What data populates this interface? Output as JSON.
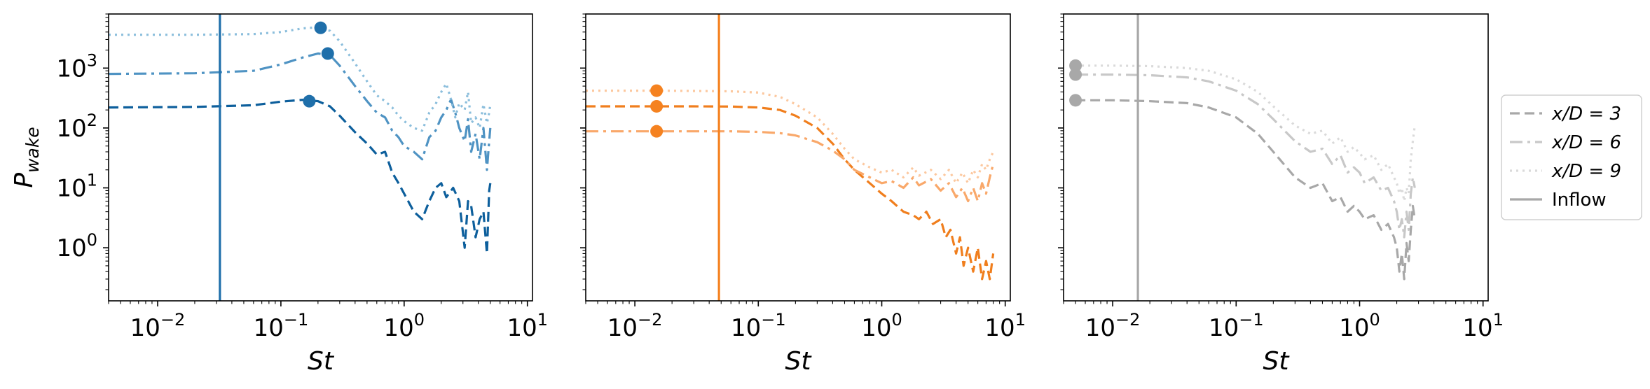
{
  "chart_data": {
    "type": "line",
    "shared_axes": {
      "xscale": "log",
      "yscale": "log",
      "xlim": [
        0.004,
        11
      ],
      "ylim": [
        0.13,
        8000
      ],
      "xticks": [
        {
          "value": 0.01,
          "mant": "10",
          "exp": "−2"
        },
        {
          "value": 0.1,
          "mant": "10",
          "exp": "−1"
        },
        {
          "value": 1,
          "mant": "10",
          "exp": "0"
        },
        {
          "value": 10,
          "mant": "10",
          "exp": "1"
        }
      ],
      "yticks": [
        {
          "value": 1,
          "mant": "10",
          "exp": "0"
        },
        {
          "value": 10,
          "mant": "10",
          "exp": "1"
        },
        {
          "value": 100,
          "mant": "10",
          "exp": "2"
        },
        {
          "value": 1000,
          "mant": "10",
          "exp": "3"
        }
      ],
      "xlabel": "St",
      "ylabel_base": "P",
      "ylabel_sub": "wake",
      "grid": false
    },
    "legend": {
      "placement": "right of figure",
      "entries": [
        {
          "label": "x/D = 3",
          "style": "dashed"
        },
        {
          "label": "x/D = 6",
          "style": "dashdot"
        },
        {
          "label": "x/D = 9",
          "style": "dotted"
        },
        {
          "label": "Inflow",
          "style": "solid"
        }
      ]
    },
    "panels": [
      {
        "color": "#1f6faa",
        "inflow_st": 0.032,
        "series": [
          {
            "style": "dashed",
            "color": "#0d5f9c",
            "x": [
              0.004,
              0.02,
              0.06,
              0.1,
              0.15,
              0.2,
              0.25,
              0.3,
              0.4,
              0.5,
              0.6,
              0.7,
              0.8,
              0.9,
              1.0,
              1.2,
              1.4,
              1.6,
              1.8,
              2.0,
              2.2,
              2.5,
              2.8,
              3.1,
              3.3,
              3.5,
              3.8,
              4.1,
              4.4,
              4.7,
              4.9,
              5.0
            ],
            "y": [
              220,
              225,
              240,
              275,
              295,
              280,
              230,
              160,
              85,
              55,
              36,
              40,
              18,
              12,
              8,
              4,
              3,
              6,
              10,
              12,
              7,
              10,
              6,
              1.0,
              6,
              5,
              1.5,
              3,
              4,
              0.8,
              9,
              12
            ]
          },
          {
            "style": "dashdot",
            "color": "#4f93c3",
            "x": [
              0.004,
              0.02,
              0.06,
              0.1,
              0.15,
              0.2,
              0.25,
              0.3,
              0.4,
              0.5,
              0.6,
              0.7,
              0.8,
              0.9,
              1.0,
              1.2,
              1.4,
              1.6,
              1.8,
              2.0,
              2.2,
              2.4,
              2.6,
              2.8,
              3.1,
              3.3,
              3.5,
              3.8,
              4.1,
              4.4,
              4.7,
              4.9,
              5.0
            ],
            "y": [
              800,
              820,
              900,
              1150,
              1500,
              1750,
              1650,
              1100,
              500,
              280,
              180,
              150,
              90,
              70,
              50,
              40,
              30,
              70,
              90,
              150,
              200,
              300,
              180,
              100,
              60,
              140,
              40,
              80,
              30,
              100,
              20,
              60,
              100
            ]
          },
          {
            "style": "dotted",
            "color": "#8bbedc",
            "x": [
              0.004,
              0.02,
              0.06,
              0.1,
              0.15,
              0.2,
              0.25,
              0.3,
              0.4,
              0.5,
              0.6,
              0.7,
              0.8,
              0.9,
              1.0,
              1.2,
              1.4,
              1.6,
              1.8,
              2.0,
              2.2,
              2.4,
              2.6,
              2.8,
              3.1,
              3.3,
              3.5,
              3.8,
              4.1,
              4.4,
              4.7,
              4.9,
              5.0
            ],
            "y": [
              3600,
              3600,
              3700,
              4000,
              4600,
              4800,
              4200,
              2800,
              1200,
              600,
              350,
              280,
              220,
              160,
              130,
              100,
              90,
              180,
              250,
              400,
              550,
              300,
              150,
              260,
              200,
              400,
              120,
              150,
              100,
              250,
              120,
              180,
              250
            ]
          }
        ],
        "markers": [
          {
            "x": 0.17,
            "y": 280
          },
          {
            "x": 0.24,
            "y": 1750
          },
          {
            "x": 0.21,
            "y": 4700
          }
        ]
      },
      {
        "color": "#f58220",
        "inflow_st": 0.048,
        "series": [
          {
            "style": "dashed",
            "color": "#f07e1d",
            "x": [
              0.004,
              0.015,
              0.03,
              0.06,
              0.1,
              0.15,
              0.2,
              0.3,
              0.4,
              0.5,
              0.6,
              0.8,
              1.0,
              1.2,
              1.5,
              1.8,
              2.0,
              2.3,
              2.6,
              3.0,
              3.3,
              3.6,
              4.0,
              4.3,
              4.6,
              5.0,
              5.5,
              6.0,
              6.5,
              7.0,
              7.5,
              8.0
            ],
            "y": [
              230,
              230,
              230,
              228,
              220,
              200,
              160,
              100,
              55,
              30,
              20,
              12,
              8,
              6,
              4,
              3.5,
              3,
              4,
              2.5,
              3,
              1.5,
              2,
              0.8,
              1.5,
              0.5,
              1.0,
              0.4,
              1.0,
              0.3,
              0.6,
              0.3,
              0.8
            ]
          },
          {
            "style": "dashdot",
            "color": "#f9a86a",
            "x": [
              0.004,
              0.015,
              0.03,
              0.06,
              0.1,
              0.15,
              0.2,
              0.3,
              0.4,
              0.5,
              0.6,
              0.8,
              1.0,
              1.2,
              1.5,
              1.8,
              2.0,
              2.5,
              3.0,
              3.5,
              4.0,
              4.5,
              5.0,
              5.5,
              6.0,
              6.5,
              7.0,
              7.5,
              8.0
            ],
            "y": [
              88,
              88,
              88,
              88,
              86,
              82,
              75,
              58,
              42,
              30,
              20,
              15,
              12,
              13,
              10,
              15,
              11,
              14,
              9,
              12,
              7,
              10,
              6,
              10,
              6,
              12,
              8,
              15,
              25
            ]
          },
          {
            "style": "dotted",
            "color": "#fcc89f",
            "x": [
              0.004,
              0.015,
              0.03,
              0.06,
              0.1,
              0.15,
              0.2,
              0.3,
              0.4,
              0.5,
              0.6,
              0.8,
              1.0,
              1.2,
              1.5,
              1.8,
              2.0,
              2.5,
              3.0,
              3.5,
              4.0,
              4.5,
              5.0,
              5.5,
              6.0,
              6.5,
              7.0,
              7.5,
              8.0
            ],
            "y": [
              420,
              420,
              415,
              410,
              390,
              330,
              250,
              150,
              80,
              45,
              30,
              22,
              18,
              20,
              15,
              22,
              16,
              20,
              14,
              20,
              12,
              18,
              12,
              20,
              15,
              25,
              20,
              30,
              40
            ]
          }
        ],
        "markers": [
          {
            "x": 0.015,
            "y": 88
          },
          {
            "x": 0.015,
            "y": 230
          },
          {
            "x": 0.015,
            "y": 420
          }
        ]
      },
      {
        "color": "#a8a8a8",
        "inflow_st": 0.016,
        "series": [
          {
            "style": "dashed",
            "color": "#a8a8a8",
            "x": [
              0.005,
              0.01,
              0.02,
              0.04,
              0.06,
              0.1,
              0.15,
              0.2,
              0.3,
              0.4,
              0.5,
              0.6,
              0.7,
              0.8,
              0.9,
              1.0,
              1.1,
              1.3,
              1.5,
              1.7,
              1.9,
              2.0,
              2.1,
              2.2,
              2.3,
              2.4,
              2.5,
              2.6,
              2.7,
              2.8
            ],
            "y": [
              290,
              290,
              280,
              260,
              220,
              150,
              80,
              40,
              15,
              10,
              12,
              6,
              7,
              4,
              5,
              4,
              3,
              3.5,
              2,
              2.5,
              1.5,
              1.0,
              0.4,
              0.8,
              0.3,
              1.2,
              0.6,
              2,
              5,
              3
            ]
          },
          {
            "style": "dashdot",
            "color": "#c8c8c8",
            "x": [
              0.005,
              0.01,
              0.02,
              0.04,
              0.06,
              0.1,
              0.15,
              0.2,
              0.3,
              0.4,
              0.5,
              0.6,
              0.7,
              0.8,
              0.9,
              1.0,
              1.1,
              1.3,
              1.5,
              1.7,
              1.9,
              2.0,
              2.1,
              2.2,
              2.3,
              2.4,
              2.5,
              2.6,
              2.7,
              2.8
            ],
            "y": [
              780,
              780,
              760,
              700,
              600,
              420,
              250,
              140,
              60,
              40,
              45,
              25,
              35,
              18,
              22,
              18,
              12,
              15,
              9,
              10,
              6,
              4,
              2,
              3,
              1.5,
              4,
              2,
              8,
              15,
              10
            ]
          },
          {
            "style": "dotted",
            "color": "#dadada",
            "x": [
              0.005,
              0.01,
              0.02,
              0.04,
              0.06,
              0.1,
              0.15,
              0.2,
              0.3,
              0.4,
              0.5,
              0.6,
              0.7,
              0.8,
              0.9,
              1.0,
              1.1,
              1.3,
              1.5,
              1.7,
              1.9,
              2.0,
              2.1,
              2.2,
              2.3,
              2.4,
              2.5,
              2.6,
              2.7,
              2.8
            ],
            "y": [
              1100,
              1100,
              1080,
              1000,
              900,
              650,
              400,
              230,
              110,
              80,
              90,
              55,
              70,
              40,
              48,
              38,
              30,
              35,
              20,
              25,
              15,
              12,
              8,
              10,
              6,
              10,
              8,
              30,
              60,
              110
            ]
          }
        ],
        "markers": [
          {
            "x": 0.005,
            "y": 290
          },
          {
            "x": 0.005,
            "y": 780
          },
          {
            "x": 0.005,
            "y": 1100
          }
        ]
      }
    ]
  }
}
